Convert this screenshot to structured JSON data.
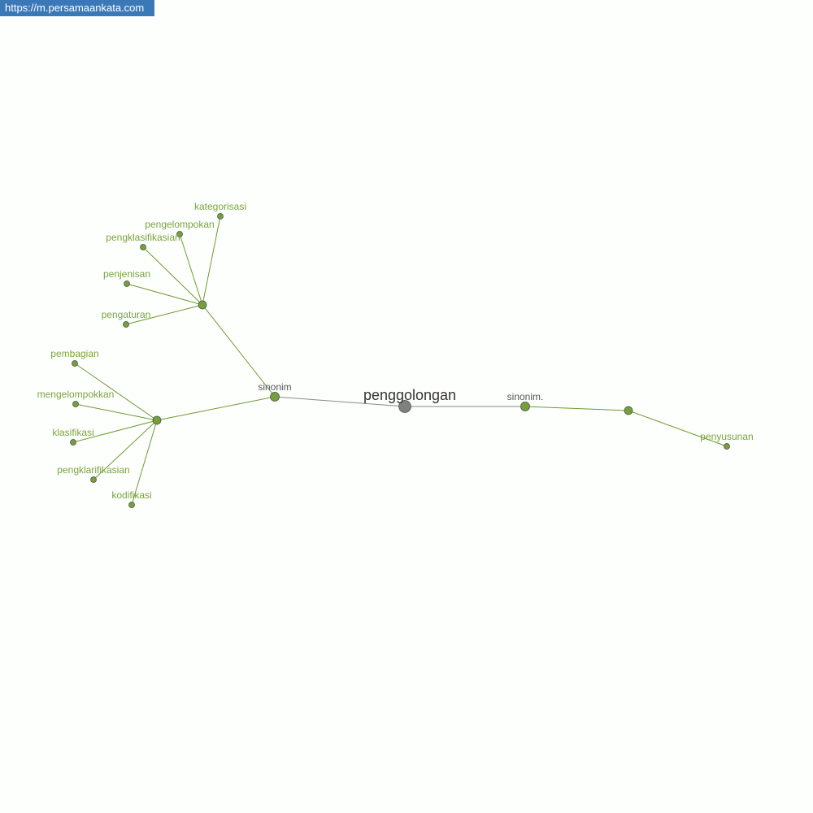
{
  "watermark": "https://m.persamaankata.com",
  "colors": {
    "accent": "#76a03a",
    "edge_green": "#6e9a2e",
    "center": "#808080",
    "edge_gray": "#888888"
  },
  "graph": {
    "center": {
      "id": "c",
      "label": "penggolongan"
    },
    "nodes": [
      {
        "id": "s1",
        "label": "sinonim",
        "kind": "relation"
      },
      {
        "id": "s2",
        "label": "sinonim.",
        "kind": "relation"
      },
      {
        "id": "hA",
        "label": "",
        "kind": "hub"
      },
      {
        "id": "hB",
        "label": "",
        "kind": "hub"
      },
      {
        "id": "hC",
        "label": "",
        "kind": "hub"
      },
      {
        "id": "l1",
        "label": "kategorisasi",
        "kind": "word"
      },
      {
        "id": "l2",
        "label": "pengelompokan",
        "kind": "word"
      },
      {
        "id": "l3",
        "label": "pengklasifikasian",
        "kind": "word"
      },
      {
        "id": "l4",
        "label": "penjenisan",
        "kind": "word"
      },
      {
        "id": "l5",
        "label": "pengaturan",
        "kind": "word"
      },
      {
        "id": "l6",
        "label": "pembagian",
        "kind": "word"
      },
      {
        "id": "l7",
        "label": "mengelompokkan",
        "kind": "word"
      },
      {
        "id": "l8",
        "label": "klasifikasi",
        "kind": "word"
      },
      {
        "id": "l9",
        "label": "pengklarifikasian",
        "kind": "word"
      },
      {
        "id": "l10",
        "label": "kodifikasi",
        "kind": "word"
      },
      {
        "id": "l11",
        "label": "penyusunan",
        "kind": "word"
      }
    ],
    "edges": [
      [
        "c",
        "s1"
      ],
      [
        "c",
        "s2"
      ],
      [
        "s1",
        "hA"
      ],
      [
        "s1",
        "hB"
      ],
      [
        "s2",
        "hC"
      ],
      [
        "hA",
        "l1"
      ],
      [
        "hA",
        "l2"
      ],
      [
        "hA",
        "l3"
      ],
      [
        "hA",
        "l4"
      ],
      [
        "hA",
        "l5"
      ],
      [
        "hB",
        "l6"
      ],
      [
        "hB",
        "l7"
      ],
      [
        "hB",
        "l8"
      ],
      [
        "hB",
        "l9"
      ],
      [
        "hB",
        "l10"
      ],
      [
        "hC",
        "l11"
      ]
    ]
  }
}
